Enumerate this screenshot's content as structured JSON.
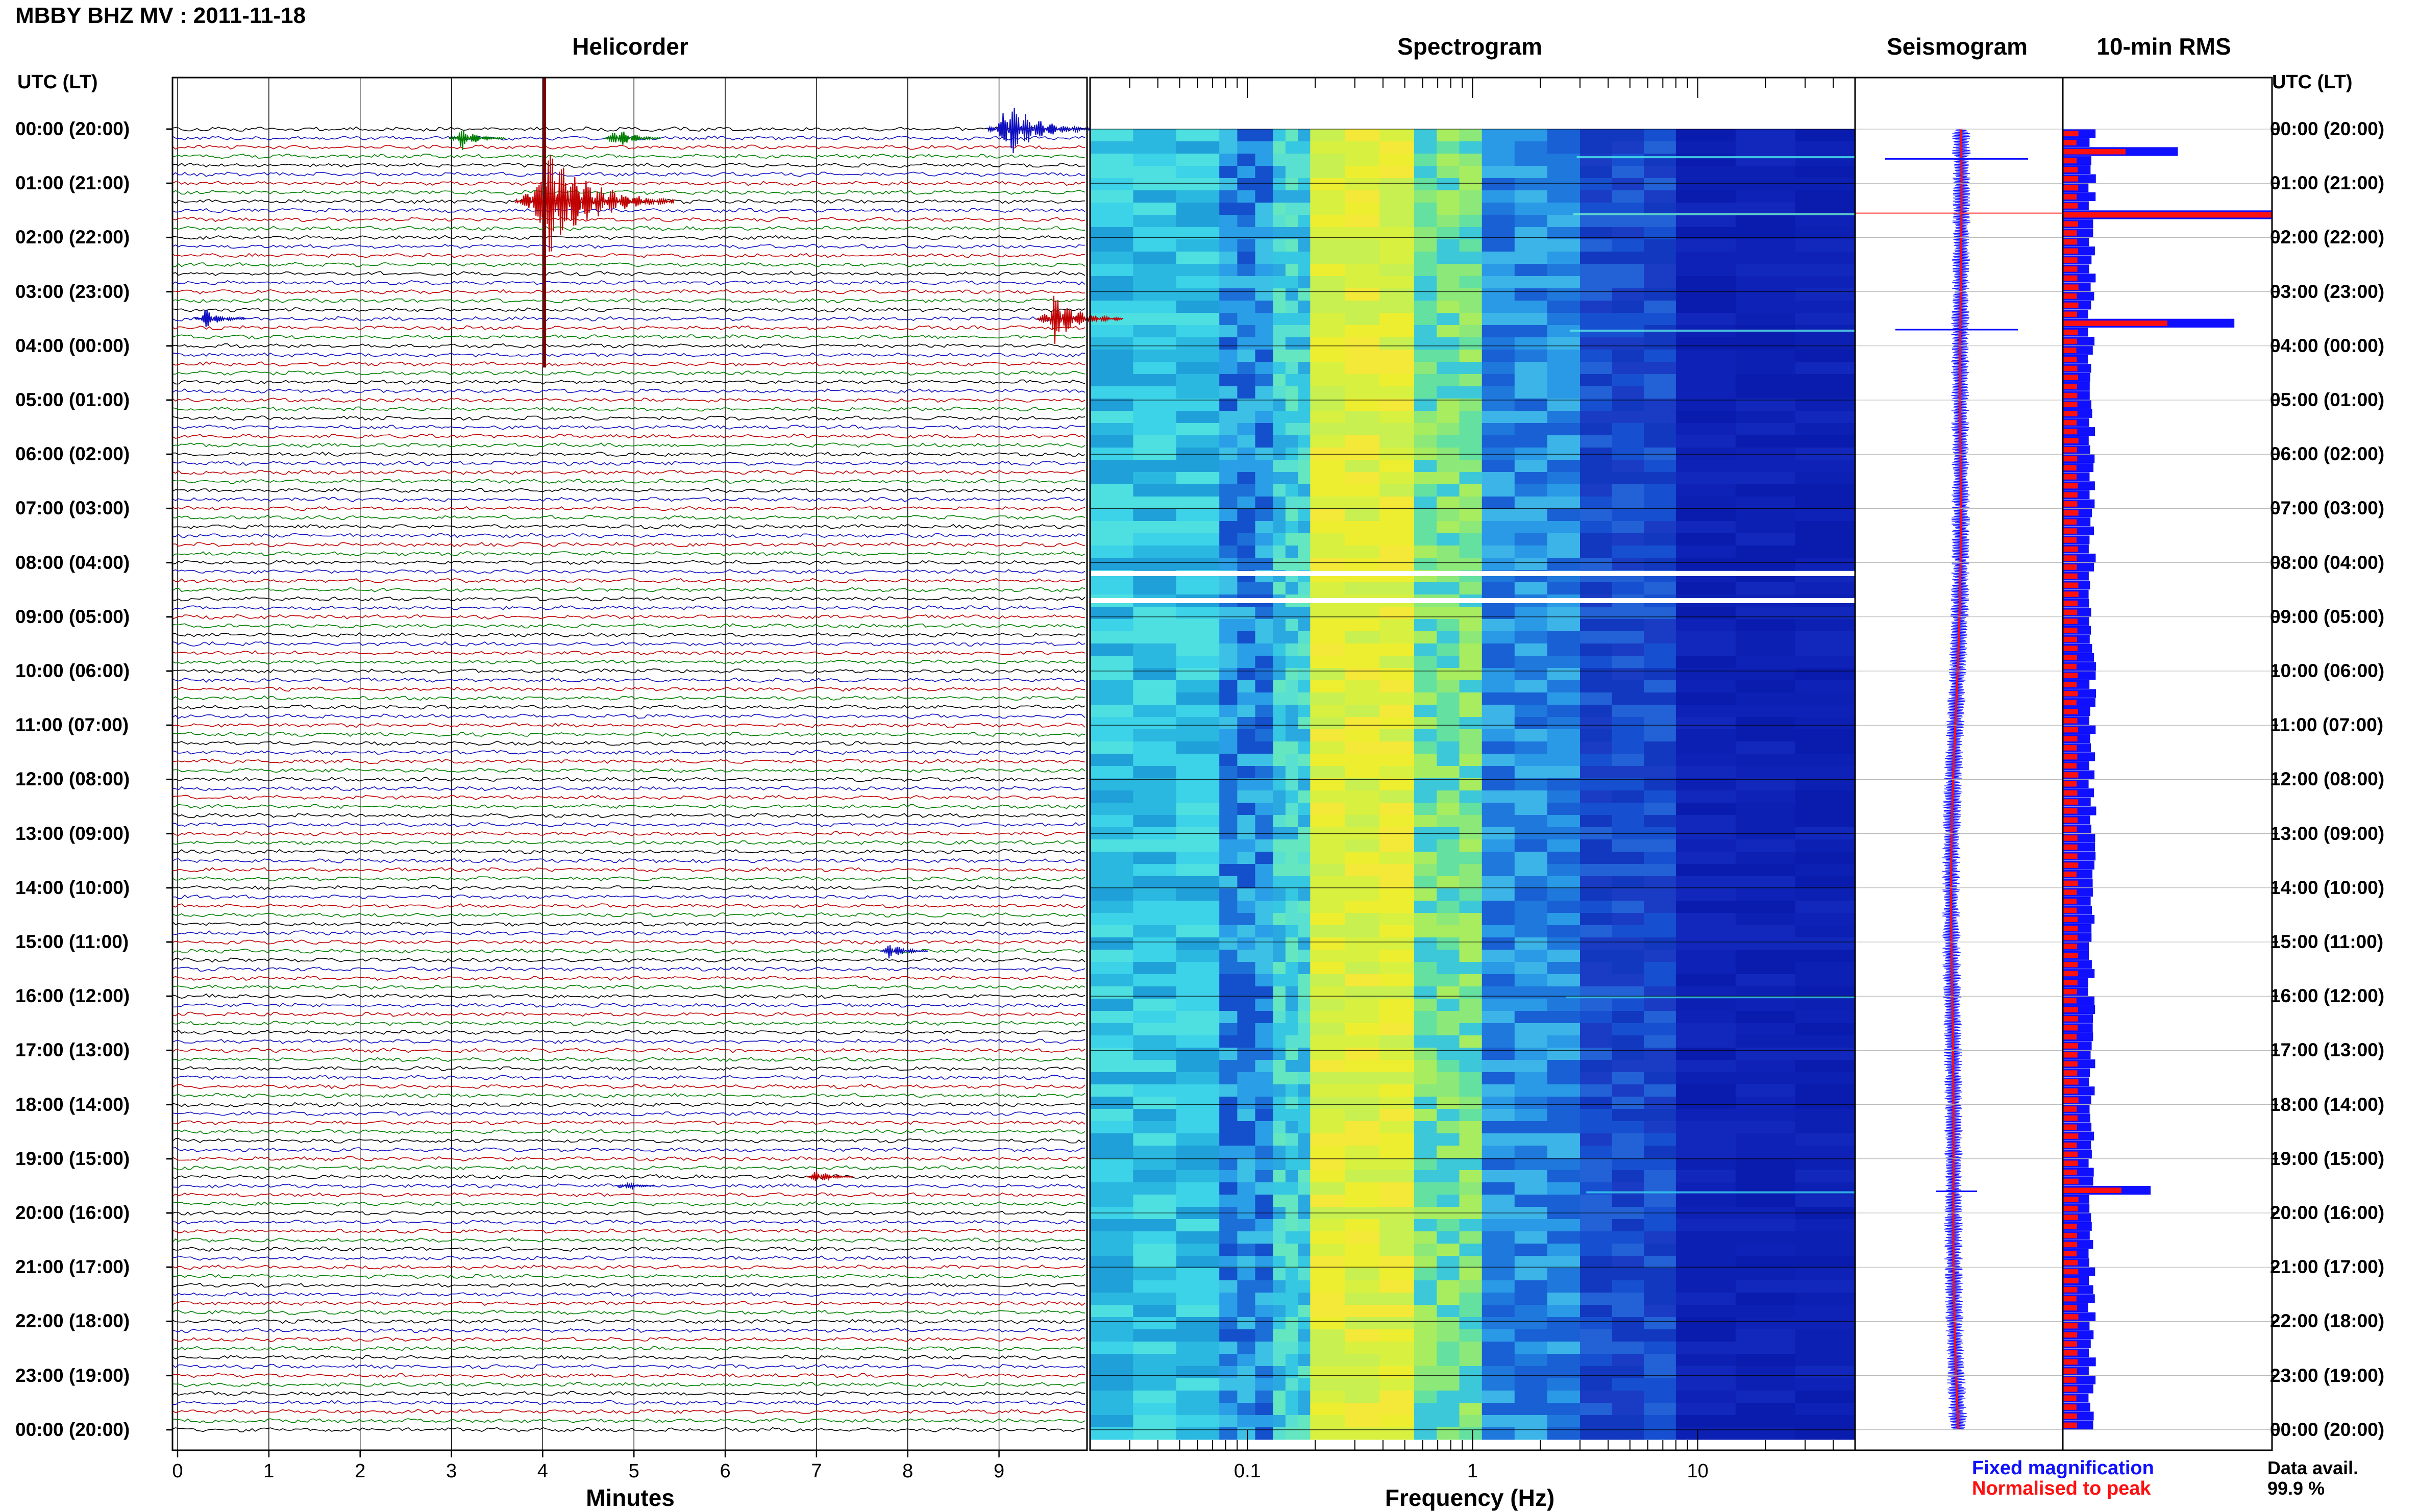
{
  "header": {
    "title": "MBBY BHZ MV : 2011-11-18",
    "utc_label_left": "UTC (LT)",
    "utc_label_right": "UTC (LT)"
  },
  "panels": {
    "helicorder": "Helicorder",
    "spectrogram": "Spectrogram",
    "seismogram": "Seismogram",
    "rms": "10-min RMS"
  },
  "time_labels": [
    "00:00 (20:00)",
    "01:00 (21:00)",
    "02:00 (22:00)",
    "03:00 (23:00)",
    "04:00 (00:00)",
    "05:00 (01:00)",
    "06:00 (02:00)",
    "07:00 (03:00)",
    "08:00 (04:00)",
    "09:00 (05:00)",
    "10:00 (06:00)",
    "11:00 (07:00)",
    "12:00 (08:00)",
    "13:00 (09:00)",
    "14:00 (10:00)",
    "15:00 (11:00)",
    "16:00 (12:00)",
    "17:00 (13:00)",
    "18:00 (14:00)",
    "19:00 (15:00)",
    "20:00 (16:00)",
    "21:00 (17:00)",
    "22:00 (18:00)",
    "23:00 (19:00)",
    "00:00 (20:00)"
  ],
  "legend": {
    "fixed": "Fixed magnification",
    "normalised": "Normalised to peak",
    "fixed_color": "#1010ff",
    "normalised_color": "#ff1010"
  },
  "data_availability": {
    "label": "Data avail.",
    "value": "99.9 %"
  },
  "colors": {
    "trace_cycle": [
      "#000000",
      "#1010c0",
      "#c00000",
      "#008000"
    ],
    "frame": "#000000",
    "spectro_low": "#2ec8e6",
    "spectro_mid": "#f0f020",
    "spectro_high": "#0a18b8"
  },
  "chart_data": [
    {
      "type": "line",
      "title": "Helicorder",
      "xlabel": "Minutes",
      "ylabel": "UTC (LT)",
      "x_ticks": [
        "0",
        "1",
        "2",
        "3",
        "4",
        "5",
        "6",
        "7",
        "8",
        "9"
      ],
      "xlim": [
        0,
        10
      ],
      "lines_per_hour": 6,
      "hours": 24,
      "events": [
        {
          "hour": 0,
          "line": 0,
          "minute": 9.1,
          "amp": 1.5,
          "color": "#1010c0"
        },
        {
          "hour": 0,
          "line": 1,
          "minute": 3.1,
          "amp": 0.6,
          "color": "#008000"
        },
        {
          "hour": 0,
          "line": 1,
          "minute": 4.8,
          "amp": 0.6,
          "color": "#008000"
        },
        {
          "hour": 1,
          "line": 2,
          "minute": 4.05,
          "amp": 2.6,
          "color": "#c00000"
        },
        {
          "hour": 3,
          "line": 3,
          "minute": 0.3,
          "amp": 0.5,
          "color": "#1010c0"
        },
        {
          "hour": 3,
          "line": 3,
          "minute": 9.6,
          "amp": 1.2,
          "color": "#c00000"
        },
        {
          "hour": 15,
          "line": 1,
          "minute": 7.8,
          "amp": 0.45,
          "color": "#1010c0"
        },
        {
          "hour": 19,
          "line": 2,
          "minute": 7.0,
          "amp": 0.4,
          "color": "#c00000"
        },
        {
          "hour": 19,
          "line": 3,
          "minute": 4.9,
          "amp": 0.25,
          "color": "#1010c0"
        }
      ]
    },
    {
      "type": "heatmap",
      "title": "Spectrogram",
      "xlabel": "Frequency (Hz)",
      "x_scale": "log",
      "x_ticks": [
        "0.1",
        "1",
        "10"
      ],
      "xlim": [
        0.02,
        50
      ],
      "data_gaps_hours": [
        8.2,
        8.7
      ]
    },
    {
      "type": "line",
      "title": "Seismogram",
      "series": [
        {
          "name": "Fixed magnification",
          "color": "#1010ff"
        },
        {
          "name": "Normalised to peak",
          "color": "#ff1010"
        }
      ]
    },
    {
      "type": "bar",
      "title": "10-min RMS",
      "series": [
        {
          "name": "Fixed magnification",
          "color": "#1010ff"
        },
        {
          "name": "Normalised to peak",
          "color": "#ff1010"
        }
      ],
      "notable_peaks": [
        {
          "hour": 0.33,
          "fixed": 0.55,
          "normalised": 0.3
        },
        {
          "hour": 1.5,
          "fixed": 1.0,
          "normalised": 1.0
        },
        {
          "hour": 3.5,
          "fixed": 0.82,
          "normalised": 0.5
        },
        {
          "hour": 19.5,
          "fixed": 0.42,
          "normalised": 0.28
        }
      ]
    }
  ]
}
